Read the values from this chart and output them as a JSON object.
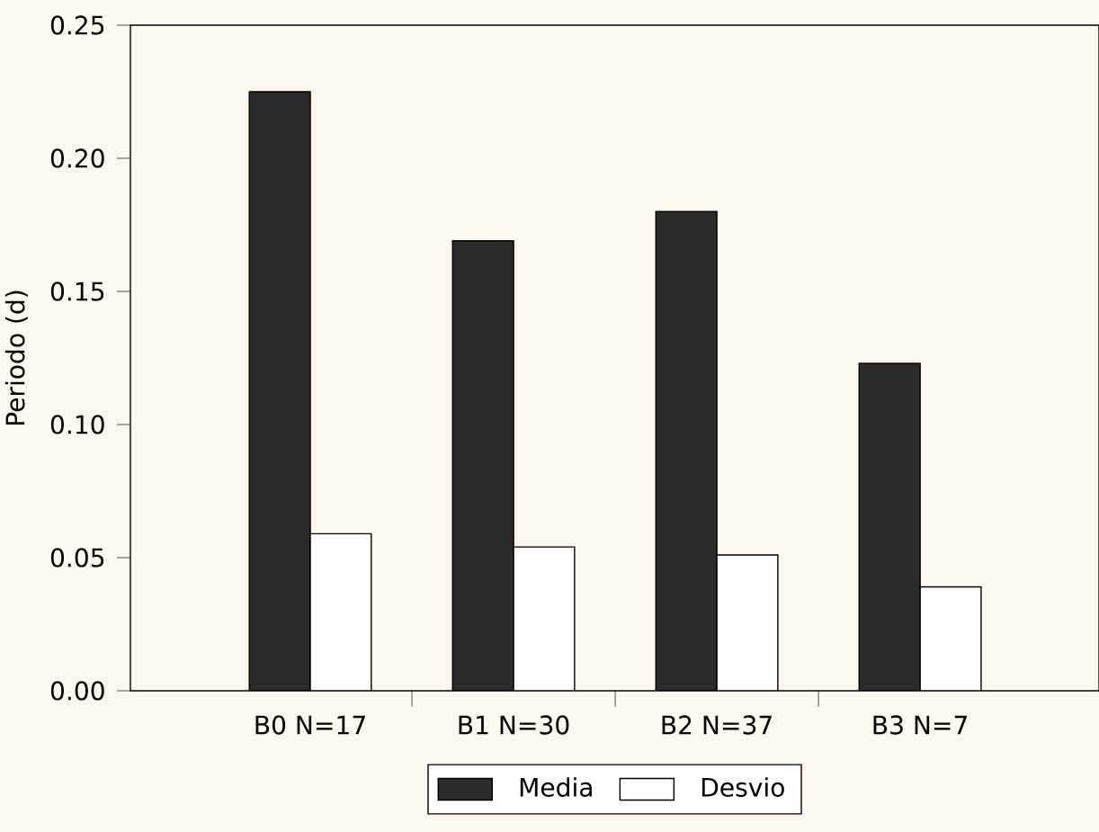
{
  "chart_data": {
    "type": "bar",
    "ylabel": "Periodo (d)",
    "categories": [
      "B0   N=17",
      "B1   N=30",
      "B2   N=37",
      "B3   N=7"
    ],
    "series": [
      {
        "name": "Media",
        "color": "#2b2b2b",
        "values": [
          0.225,
          0.169,
          0.18,
          0.123
        ]
      },
      {
        "name": "Desvio",
        "color": "#ffffff",
        "values": [
          0.059,
          0.054,
          0.051,
          0.039
        ]
      }
    ],
    "ylim": [
      0,
      0.25
    ],
    "yticks": [
      {
        "value": 0,
        "label": "0.00"
      },
      {
        "value": 0.05,
        "label": "0.05"
      },
      {
        "value": 0.1,
        "label": "0.10"
      },
      {
        "value": 0.15,
        "label": "0.15"
      },
      {
        "value": 0.2,
        "label": "0.20"
      },
      {
        "value": 0.25,
        "label": "0.25"
      }
    ],
    "grid": false,
    "legend": "bottom"
  }
}
